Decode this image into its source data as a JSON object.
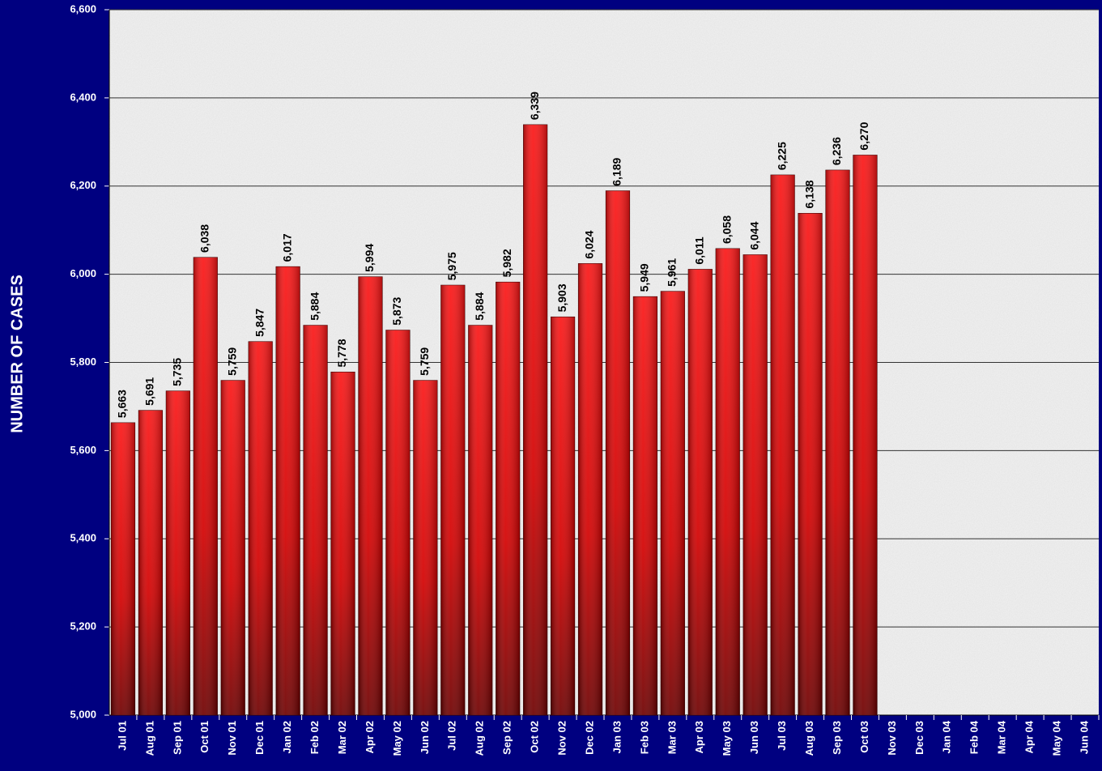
{
  "chart_data": {
    "type": "bar",
    "y_label": "NUMBER OF CASES",
    "categories": [
      "Jul 01",
      "Aug 01",
      "Sep 01",
      "Oct 01",
      "Nov 01",
      "Dec 01",
      "Jan 02",
      "Feb 02",
      "Mar 02",
      "Apr 02",
      "May 02",
      "Jun 02",
      "Jul 02",
      "Aug 02",
      "Sep 02",
      "Oct 02",
      "Nov 02",
      "Dec 02",
      "Jan 03",
      "Feb 03",
      "Mar 03",
      "Apr 03",
      "May 03",
      "Jun 03",
      "Jul 03",
      "Aug 03",
      "Sep 03",
      "Oct 03",
      "Nov 03",
      "Dec 03",
      "Jan 04",
      "Feb 04",
      "Mar 04",
      "Apr 04",
      "May 04",
      "Jun 04"
    ],
    "values": [
      5663,
      5691,
      5735,
      6038,
      5759,
      5847,
      6017,
      5884,
      5778,
      5994,
      5873,
      5759,
      5975,
      5884,
      5982,
      6339,
      5903,
      6024,
      6189,
      5949,
      5961,
      6011,
      6058,
      6044,
      6225,
      6138,
      6236,
      6270,
      null,
      null,
      null,
      null,
      null,
      null,
      null,
      null
    ],
    "value_labels": [
      "5,663",
      "5,691",
      "5,735",
      "6,038",
      "5,759",
      "5,847",
      "6,017",
      "5,884",
      "5,778",
      "5,994",
      "5,873",
      "5,759",
      "5,975",
      "5,884",
      "5,982",
      "6,339",
      "5,903",
      "6,024",
      "6,189",
      "5,949",
      "5,961",
      "6,011",
      "6,058",
      "6,044",
      "6,225",
      "6,138",
      "6,236",
      "6,270",
      null,
      null,
      null,
      null,
      null,
      null,
      null,
      null
    ],
    "color": "#e00000",
    "ylim": [
      5000,
      6600
    ],
    "yticks": [
      {
        "value": 5000,
        "label": "5,000"
      },
      {
        "value": 5200,
        "label": "5,200"
      },
      {
        "value": 5400,
        "label": "5,400"
      },
      {
        "value": 5600,
        "label": "5,600"
      },
      {
        "value": 5800,
        "label": "5,800"
      },
      {
        "value": 6000,
        "label": "6,000"
      },
      {
        "value": 6200,
        "label": "6,200"
      },
      {
        "value": 6400,
        "label": "6,400"
      },
      {
        "value": 6600,
        "label": "6,600"
      }
    ],
    "grid": true
  }
}
